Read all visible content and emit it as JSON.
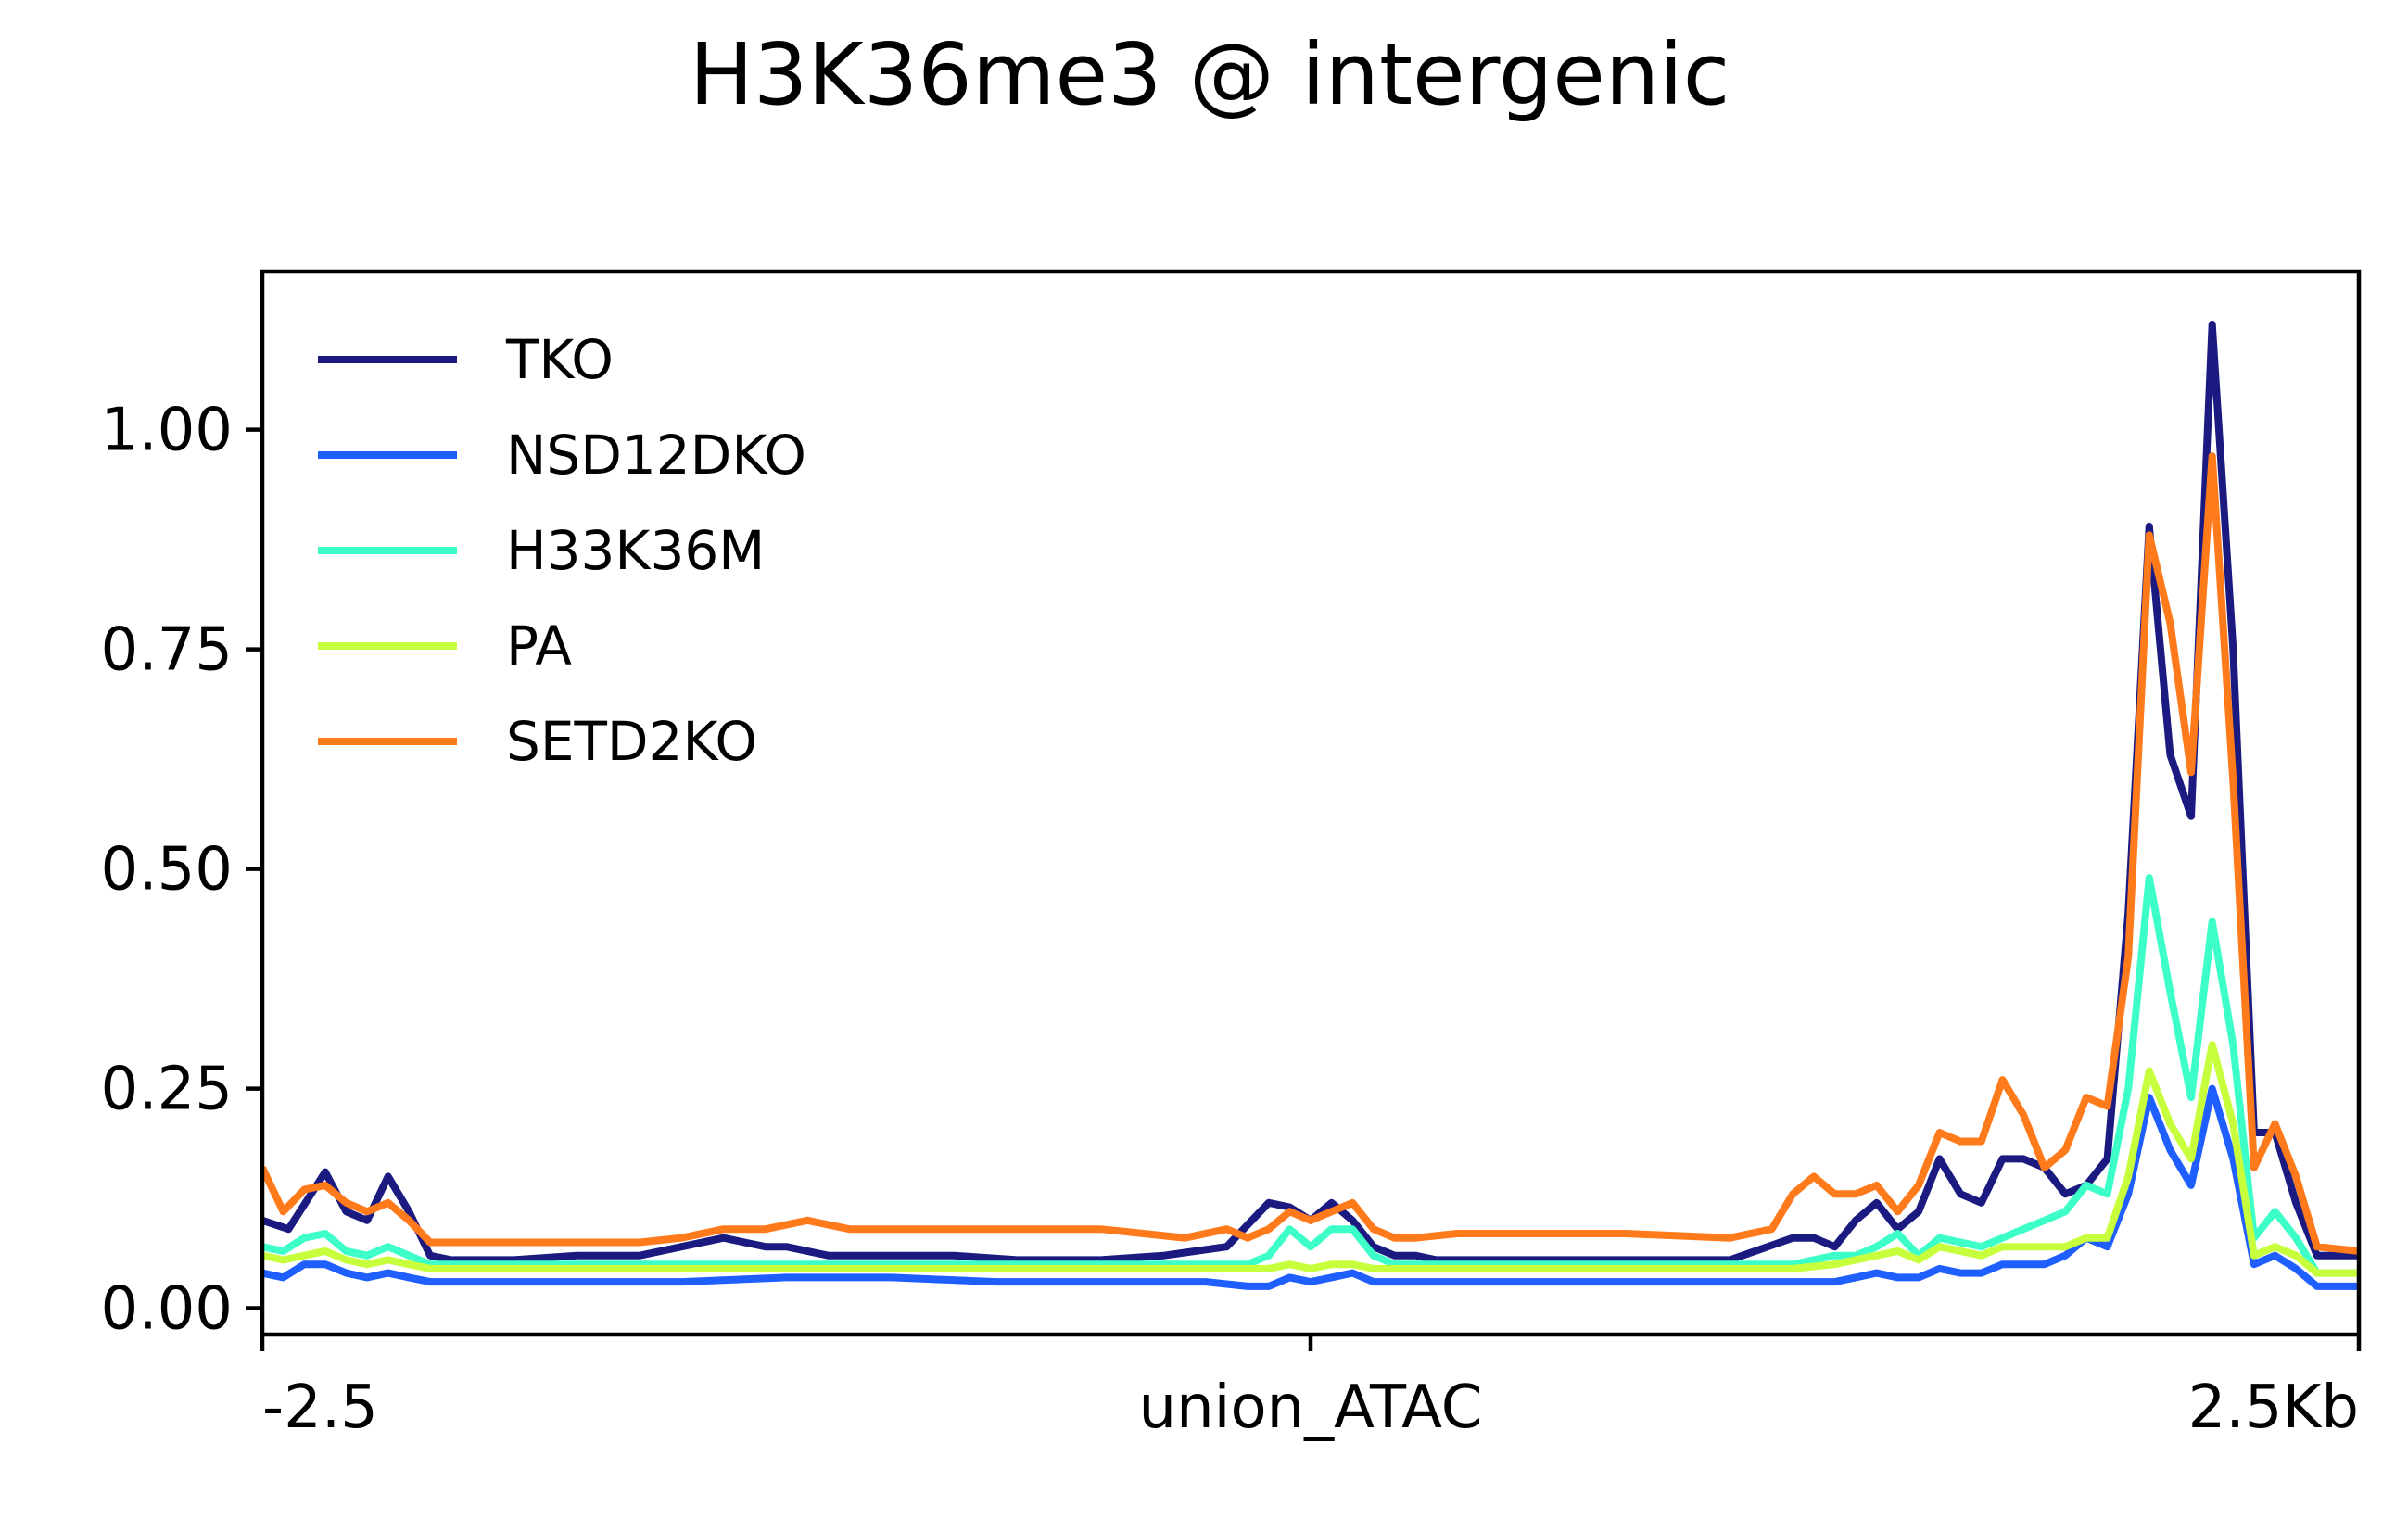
{
  "chart_data": {
    "type": "line",
    "title": "H3K36me3 @ intergenic",
    "xlabel": "",
    "ylabel": "",
    "x_ticks": [
      {
        "x": 0,
        "label": "-2.5"
      },
      {
        "x": 50,
        "label": "union_ATAC"
      },
      {
        "x": 100,
        "label": "2.5Kb"
      }
    ],
    "xlim": [
      0,
      100
    ],
    "y_ticks": [
      0.0,
      0.25,
      0.5,
      0.75,
      1.0
    ],
    "y_tick_labels": [
      "0.00",
      "0.25",
      "0.50",
      "0.75",
      "1.00"
    ],
    "ylim": [
      -0.03,
      1.18
    ],
    "grid": false,
    "legend_position": "top-left",
    "series": [
      {
        "name": "TKO",
        "color": "#1a1a80",
        "x": [
          0,
          1.25,
          3,
          4,
          5,
          6,
          7,
          8,
          9,
          12,
          15,
          18,
          20,
          22,
          23,
          24,
          25,
          26,
          27,
          28,
          30,
          33,
          36,
          40,
          43,
          46,
          48,
          49,
          50,
          51,
          52,
          53,
          54,
          55,
          56,
          60,
          65,
          70,
          73,
          74,
          75,
          76,
          77,
          78,
          79,
          80,
          81,
          82,
          83,
          84,
          85,
          86,
          87,
          88,
          89,
          90,
          91,
          92,
          93,
          94,
          95,
          96,
          97,
          98,
          100
        ],
        "y": [
          0.1,
          0.09,
          0.155,
          0.11,
          0.1,
          0.15,
          0.11,
          0.06,
          0.055,
          0.055,
          0.06,
          0.06,
          0.07,
          0.08,
          0.075,
          0.07,
          0.07,
          0.065,
          0.06,
          0.06,
          0.06,
          0.06,
          0.055,
          0.055,
          0.06,
          0.07,
          0.12,
          0.115,
          0.1,
          0.12,
          0.1,
          0.07,
          0.06,
          0.06,
          0.055,
          0.055,
          0.055,
          0.055,
          0.08,
          0.08,
          0.07,
          0.1,
          0.12,
          0.09,
          0.11,
          0.17,
          0.13,
          0.12,
          0.17,
          0.17,
          0.16,
          0.13,
          0.14,
          0.17,
          0.45,
          0.89,
          0.63,
          0.56,
          1.12,
          0.75,
          0.2,
          0.2,
          0.12,
          0.06,
          0.06
        ]
      },
      {
        "name": "NSD12DKO",
        "color": "#1f5eff",
        "x": [
          0,
          1,
          2,
          3,
          4,
          5,
          6,
          7,
          8,
          10,
          15,
          20,
          25,
          30,
          35,
          40,
          45,
          47,
          48,
          49,
          50,
          51,
          52,
          53,
          54,
          55,
          60,
          65,
          70,
          73,
          75,
          76,
          77,
          78,
          79,
          80,
          81,
          82,
          83,
          84,
          85,
          86,
          87,
          88,
          89,
          90,
          91,
          92,
          93,
          94,
          95,
          96,
          97,
          98,
          100
        ],
        "y": [
          0.04,
          0.035,
          0.05,
          0.05,
          0.04,
          0.035,
          0.04,
          0.035,
          0.03,
          0.03,
          0.03,
          0.03,
          0.035,
          0.035,
          0.03,
          0.03,
          0.03,
          0.025,
          0.025,
          0.035,
          0.03,
          0.035,
          0.04,
          0.03,
          0.03,
          0.03,
          0.03,
          0.03,
          0.03,
          0.03,
          0.03,
          0.035,
          0.04,
          0.035,
          0.035,
          0.045,
          0.04,
          0.04,
          0.05,
          0.05,
          0.05,
          0.06,
          0.08,
          0.07,
          0.13,
          0.24,
          0.18,
          0.14,
          0.25,
          0.17,
          0.05,
          0.06,
          0.045,
          0.025,
          0.025
        ]
      },
      {
        "name": "H33K36M",
        "color": "#3dffc8",
        "x": [
          0,
          1,
          2,
          3,
          4,
          5,
          6,
          7,
          8,
          10,
          15,
          20,
          25,
          30,
          35,
          40,
          45,
          47,
          48,
          49,
          50,
          51,
          52,
          53,
          54,
          55,
          60,
          65,
          70,
          73,
          75,
          76,
          77,
          78,
          79,
          80,
          81,
          82,
          83,
          84,
          85,
          86,
          87,
          88,
          89,
          90,
          91,
          92,
          93,
          94,
          95,
          96,
          97,
          98,
          100
        ],
        "y": [
          0.07,
          0.065,
          0.08,
          0.085,
          0.065,
          0.06,
          0.07,
          0.06,
          0.05,
          0.05,
          0.05,
          0.05,
          0.05,
          0.05,
          0.05,
          0.05,
          0.05,
          0.05,
          0.06,
          0.09,
          0.07,
          0.09,
          0.09,
          0.06,
          0.05,
          0.05,
          0.05,
          0.05,
          0.05,
          0.05,
          0.06,
          0.06,
          0.07,
          0.085,
          0.06,
          0.08,
          0.075,
          0.07,
          0.08,
          0.09,
          0.1,
          0.11,
          0.14,
          0.13,
          0.25,
          0.49,
          0.36,
          0.24,
          0.44,
          0.3,
          0.08,
          0.11,
          0.08,
          0.04,
          0.04
        ]
      },
      {
        "name": "PA",
        "color": "#c8ff3d",
        "x": [
          0,
          1,
          2,
          3,
          4,
          5,
          6,
          7,
          8,
          10,
          15,
          20,
          25,
          30,
          35,
          40,
          45,
          47,
          48,
          49,
          50,
          51,
          52,
          53,
          54,
          55,
          60,
          65,
          70,
          73,
          75,
          76,
          77,
          78,
          79,
          80,
          81,
          82,
          83,
          84,
          85,
          86,
          87,
          88,
          89,
          90,
          91,
          92,
          93,
          94,
          95,
          96,
          97,
          98,
          100
        ],
        "y": [
          0.06,
          0.055,
          0.06,
          0.065,
          0.055,
          0.05,
          0.055,
          0.05,
          0.045,
          0.045,
          0.045,
          0.045,
          0.045,
          0.045,
          0.045,
          0.045,
          0.045,
          0.045,
          0.045,
          0.05,
          0.045,
          0.05,
          0.05,
          0.045,
          0.045,
          0.045,
          0.045,
          0.045,
          0.045,
          0.045,
          0.05,
          0.055,
          0.06,
          0.065,
          0.055,
          0.07,
          0.065,
          0.06,
          0.07,
          0.07,
          0.07,
          0.07,
          0.08,
          0.08,
          0.15,
          0.27,
          0.21,
          0.17,
          0.3,
          0.21,
          0.06,
          0.07,
          0.06,
          0.04,
          0.04
        ]
      },
      {
        "name": "SETD2KO",
        "color": "#ff7a1a",
        "x": [
          0,
          1,
          2,
          3,
          4,
          5,
          6,
          7,
          8,
          10,
          15,
          18,
          20,
          22,
          24,
          26,
          28,
          30,
          33,
          36,
          40,
          44,
          46,
          47,
          48,
          49,
          50,
          51,
          52,
          53,
          54,
          55,
          57,
          60,
          65,
          70,
          72,
          73,
          74,
          75,
          76,
          77,
          78,
          79,
          80,
          81,
          82,
          83,
          84,
          85,
          86,
          87,
          88,
          89,
          90,
          91,
          92,
          93,
          94,
          95,
          96,
          97,
          98,
          100
        ],
        "y": [
          0.16,
          0.11,
          0.135,
          0.14,
          0.12,
          0.11,
          0.12,
          0.1,
          0.075,
          0.075,
          0.075,
          0.075,
          0.08,
          0.09,
          0.09,
          0.1,
          0.09,
          0.09,
          0.09,
          0.09,
          0.09,
          0.08,
          0.09,
          0.08,
          0.09,
          0.11,
          0.1,
          0.11,
          0.12,
          0.09,
          0.08,
          0.08,
          0.085,
          0.085,
          0.085,
          0.08,
          0.09,
          0.13,
          0.15,
          0.13,
          0.13,
          0.14,
          0.11,
          0.14,
          0.2,
          0.19,
          0.19,
          0.26,
          0.22,
          0.16,
          0.18,
          0.24,
          0.23,
          0.4,
          0.88,
          0.78,
          0.61,
          0.97,
          0.6,
          0.16,
          0.21,
          0.15,
          0.07,
          0.065
        ]
      }
    ]
  }
}
